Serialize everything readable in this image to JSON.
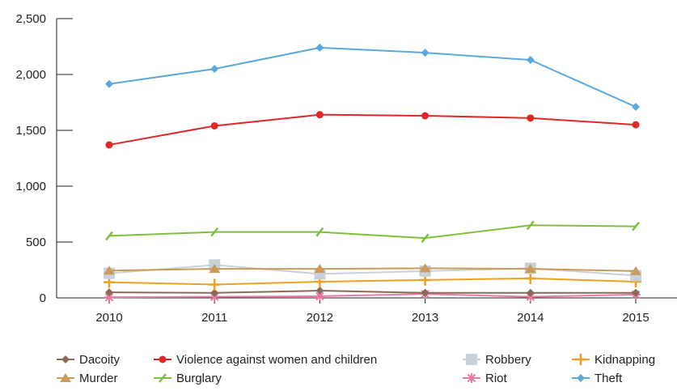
{
  "chart_data": {
    "type": "line",
    "title": "",
    "xlabel": "",
    "ylabel": "",
    "categories": [
      "2010",
      "2011",
      "2012",
      "2013",
      "2014",
      "2015"
    ],
    "ylim": [
      0,
      2500
    ],
    "yticks": [
      0,
      500,
      1000,
      1500,
      2000,
      2500
    ],
    "ytick_labels": [
      "0",
      "500",
      "1,000",
      "1,500",
      "2,000",
      "2,500"
    ],
    "grid": false,
    "legend_position": "bottom",
    "series": [
      {
        "name": "Dacoity",
        "color": "#8b6a55",
        "marker": "diamond",
        "values": [
          50,
          45,
          65,
          45,
          45,
          45
        ]
      },
      {
        "name": "Violence against women and children",
        "color": "#e02626",
        "marker": "circle",
        "values": [
          1370,
          1540,
          1640,
          1630,
          1610,
          1550
        ]
      },
      {
        "name": "Robbery",
        "color": "#c8d0d8",
        "marker": "square",
        "values": [
          220,
          295,
          215,
          240,
          265,
          200
        ]
      },
      {
        "name": "Kidnapping",
        "color": "#f0a020",
        "marker": "plus",
        "values": [
          140,
          120,
          145,
          160,
          175,
          145
        ]
      },
      {
        "name": "Murder",
        "color": "#c89b5a",
        "marker": "triangle",
        "values": [
          245,
          260,
          260,
          265,
          260,
          240
        ]
      },
      {
        "name": "Burglary",
        "color": "#7fbf3f",
        "marker": "slash",
        "values": [
          555,
          590,
          590,
          535,
          650,
          640
        ]
      },
      {
        "name": "Riot",
        "color": "#e87aa6",
        "marker": "asterisk",
        "values": [
          5,
          10,
          15,
          35,
          10,
          30
        ]
      },
      {
        "name": "Theft",
        "color": "#5aa8dc",
        "marker": "diamond",
        "values": [
          1915,
          2050,
          2240,
          2195,
          2130,
          1710
        ]
      }
    ]
  }
}
